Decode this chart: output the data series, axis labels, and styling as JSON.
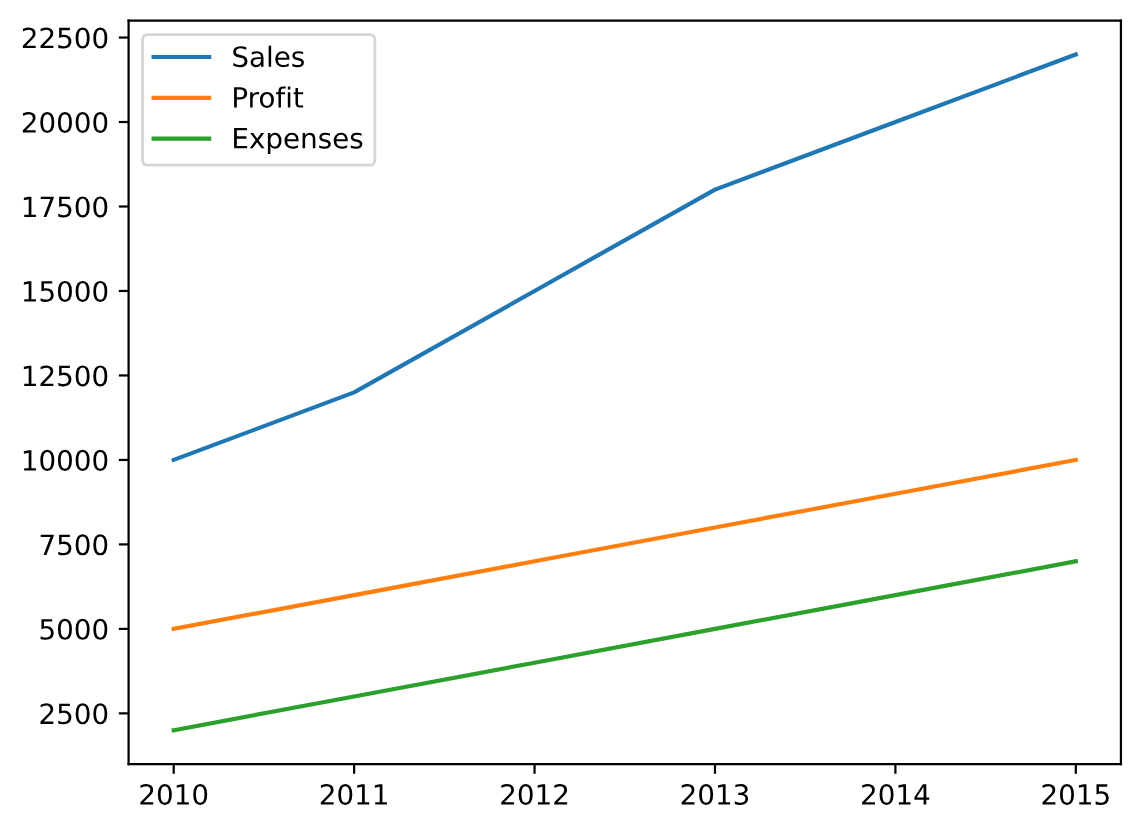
{
  "chart_data": {
    "type": "line",
    "x": [
      2010,
      2011,
      2012,
      2013,
      2014,
      2015
    ],
    "series": [
      {
        "name": "Sales",
        "color": "#1f77b4",
        "values": [
          10000,
          12000,
          15000,
          18000,
          20000,
          22000
        ]
      },
      {
        "name": "Profit",
        "color": "#ff7f0e",
        "values": [
          5000,
          6000,
          7000,
          8000,
          9000,
          10000
        ]
      },
      {
        "name": "Expenses",
        "color": "#2ca02c",
        "values": [
          2000,
          3000,
          4000,
          5000,
          6000,
          7000
        ]
      }
    ],
    "xlim": [
      2009.75,
      2015.25
    ],
    "xticks": [
      2010,
      2011,
      2012,
      2013,
      2014,
      2015
    ],
    "ylim": [
      1000,
      23000
    ],
    "yticks": [
      2500,
      5000,
      7500,
      10000,
      12500,
      15000,
      17500,
      20000,
      22500
    ],
    "grid": false,
    "legend": "top left",
    "marker": "none",
    "line_style": "solid"
  }
}
